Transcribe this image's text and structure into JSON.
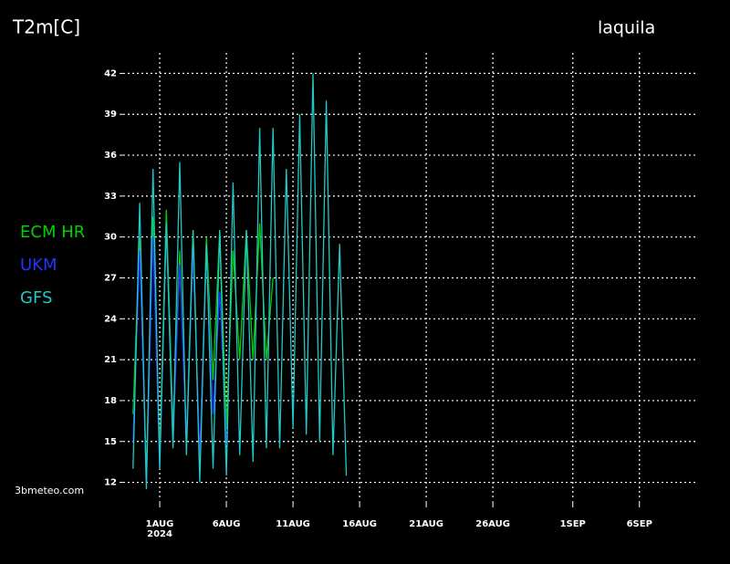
{
  "chart_data": {
    "type": "line",
    "title": "T2m[C]",
    "location": "laquila",
    "credit": "3bmeteo.com",
    "x": [
      -2,
      -1.5,
      -1,
      -0.5,
      0,
      0.5,
      1,
      1.5,
      2,
      2.5,
      3,
      3.5,
      4,
      4.5,
      5,
      5.5,
      6,
      6.5,
      7,
      7.5,
      8,
      8.5,
      9,
      9.5,
      10,
      10.5,
      11,
      11.5,
      12,
      12.5,
      13,
      13.5,
      14
    ],
    "series": [
      {
        "name": "ECM  HR",
        "color": "#00d000",
        "values": [
          17,
          30,
          12.5,
          31.5,
          14,
          32,
          16,
          29,
          15,
          30.5,
          13,
          30,
          19.5,
          30.5,
          16,
          29,
          21,
          30.5,
          21,
          31,
          21,
          27,
          null,
          null,
          null,
          null,
          null,
          null,
          null,
          null,
          null,
          null,
          null
        ]
      },
      {
        "name": "UKM",
        "color": "#2233ff",
        "values": [
          15,
          29,
          12,
          30,
          13,
          31,
          15,
          28,
          15,
          29,
          14,
          29,
          17,
          26,
          15,
          null,
          null,
          null,
          null,
          null,
          null,
          null,
          null,
          null,
          null,
          null,
          null,
          null,
          null,
          null,
          null,
          null,
          null
        ]
      },
      {
        "name": "GFS",
        "color": "#22c8c8",
        "values": [
          13,
          32.5,
          11.5,
          35,
          13,
          31,
          14.5,
          35.5,
          14,
          30.5,
          12,
          29.5,
          13,
          30.5,
          12.5,
          34,
          14,
          30.5,
          13.5,
          38,
          14.5,
          38,
          14.5,
          35,
          16,
          39,
          15.5,
          42,
          15,
          40,
          14,
          29.5,
          12.5
        ]
      }
    ],
    "xlim": [
      -2.4,
      40.4
    ],
    "ylim": [
      10.9,
      43.5
    ],
    "xticks": [
      {
        "value": 0,
        "label": "1AUG"
      },
      {
        "value": 5,
        "label": "6AUG"
      },
      {
        "value": 10,
        "label": "11AUG"
      },
      {
        "value": 15,
        "label": "16AUG"
      },
      {
        "value": 20,
        "label": "21AUG"
      },
      {
        "value": 25,
        "label": "26AUG"
      },
      {
        "value": 31,
        "label": "1SEP"
      },
      {
        "value": 36,
        "label": "6SEP"
      }
    ],
    "x_sublabel": "2024",
    "yticks": [
      12,
      15,
      18,
      21,
      24,
      27,
      30,
      33,
      36,
      39,
      42
    ],
    "grid": true,
    "legend": "left"
  }
}
